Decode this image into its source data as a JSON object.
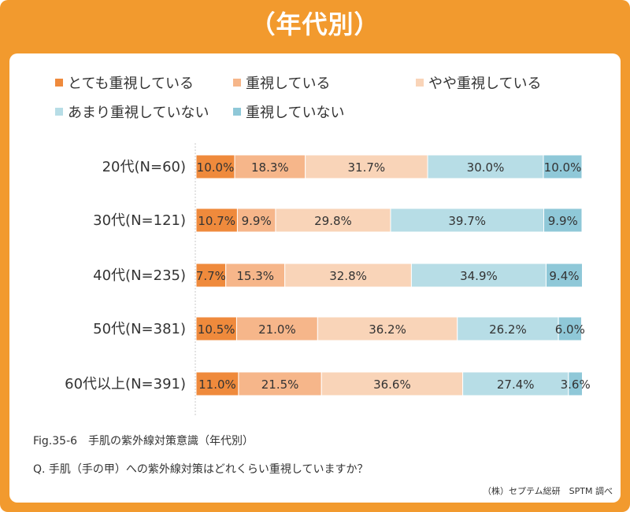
{
  "title": "（年代別）",
  "legend": [
    {
      "label": "とても重視している",
      "color": "#ef8a3c"
    },
    {
      "label": "重視している",
      "color": "#f6b68a"
    },
    {
      "label": "やや重視している",
      "color": "#f9d4b8"
    },
    {
      "label": "あまり重視していない",
      "color": "#b7dde6"
    },
    {
      "label": "重視していない",
      "color": "#8fc8d8"
    }
  ],
  "chart_data": {
    "type": "bar",
    "orientation": "horizontal",
    "stacked": true,
    "categories": [
      "20代(N=60)",
      "30代(N=121)",
      "40代(N=235)",
      "50代(N=381)",
      "60代以上(N=391)"
    ],
    "series": [
      {
        "name": "とても重視している",
        "values": [
          10.0,
          10.7,
          7.7,
          10.5,
          11.0
        ]
      },
      {
        "name": "重視している",
        "values": [
          18.3,
          9.9,
          15.3,
          21.0,
          21.5
        ]
      },
      {
        "name": "やや重視している",
        "values": [
          31.7,
          29.8,
          32.8,
          36.2,
          36.6
        ]
      },
      {
        "name": "あまり重視していない",
        "values": [
          30.0,
          39.7,
          34.9,
          26.2,
          27.4
        ]
      },
      {
        "name": "重視していない",
        "values": [
          10.0,
          9.9,
          9.4,
          6.0,
          3.6
        ]
      }
    ],
    "unit": "%",
    "xlim": [
      0,
      100
    ]
  },
  "footer": {
    "fig": "Fig.35-6　手肌の紫外線対策意識（年代別）",
    "question": "Q. 手肌（手の甲）への紫外線対策はどれくらい重視していますか？",
    "source": "（株）セプテム総研　SPTM 調べ"
  }
}
